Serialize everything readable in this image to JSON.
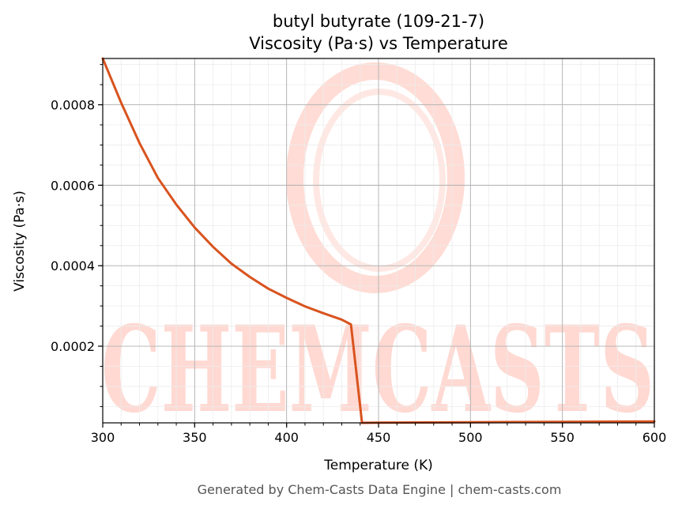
{
  "title_line1": "butyl butyrate (109-21-7)",
  "title_line2": "Viscosity (Pa·s) vs Temperature",
  "footer": "Generated by Chem-Casts Data Engine | chem-casts.com",
  "watermark": {
    "text": "CHEMCASTS",
    "color": "#ffd9d2"
  },
  "chart_data": {
    "type": "line",
    "title": "butyl butyrate (109-21-7)\nViscosity (Pa·s) vs Temperature",
    "xlabel": "Temperature (K)",
    "ylabel": "Viscosity (Pa·s)",
    "xlim": [
      300,
      600
    ],
    "ylim": [
      9.5e-06,
      0.000915
    ],
    "xticks": [
      300,
      350,
      400,
      450,
      500,
      550,
      600
    ],
    "yticks": [
      0.0002,
      0.0004,
      0.0006,
      0.0008
    ],
    "ytick_labels": [
      "0.0002",
      "0.0004",
      "0.0006",
      "0.0008"
    ],
    "grid": true,
    "line_color": "#d9531e",
    "series": [
      {
        "x": [
          300,
          310,
          320,
          330,
          340,
          350,
          360,
          370,
          380,
          390,
          400,
          410,
          420,
          430,
          435,
          441,
          450,
          500,
          550,
          600
        ],
        "y": [
          0.000915,
          0.000805,
          0.000705,
          0.000618,
          0.000552,
          0.000495,
          0.000447,
          0.000405,
          0.000372,
          0.000343,
          0.00032,
          0.000299,
          0.000282,
          0.000266,
          0.000254,
          9.5e-06,
          1e-05,
          1.1e-05,
          1.2e-05,
          1.3e-05
        ]
      }
    ]
  }
}
